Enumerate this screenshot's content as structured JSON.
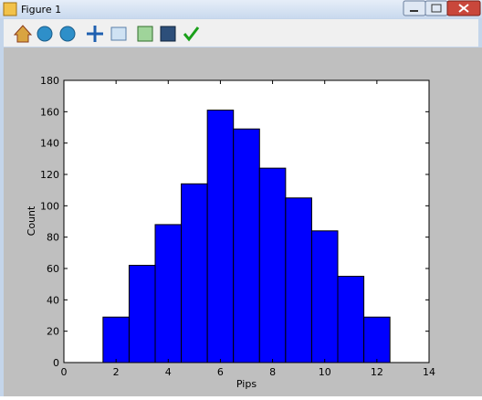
{
  "window": {
    "title": "Figure 1"
  },
  "chart_data": {
    "type": "histogram",
    "xlabel": "Pips",
    "ylabel": "Count",
    "bins": [
      1.5,
      2.5,
      3.5,
      4.5,
      5.5,
      6.5,
      7.5,
      8.5,
      9.5,
      10.5,
      11.5,
      12.5
    ],
    "values": [
      29,
      62,
      88,
      114,
      161,
      149,
      124,
      105,
      84,
      55,
      29
    ],
    "color": "#0000ff",
    "xlim": [
      0,
      14
    ],
    "xticks": [
      0,
      2,
      4,
      6,
      8,
      10,
      12,
      14
    ],
    "ylim": [
      0,
      180
    ],
    "yticks": [
      0,
      20,
      40,
      60,
      80,
      100,
      120,
      140,
      160,
      180
    ]
  }
}
